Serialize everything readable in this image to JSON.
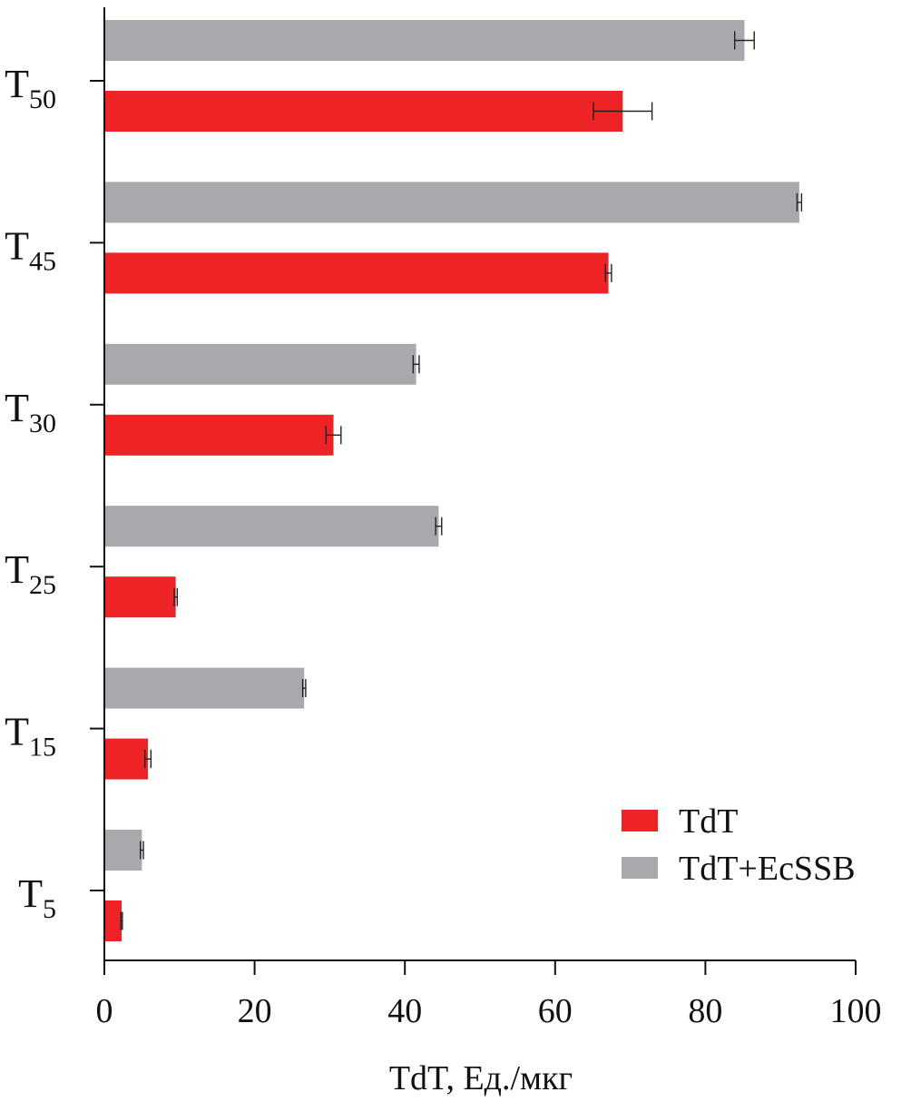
{
  "chart_data": {
    "type": "bar",
    "orientation": "horizontal",
    "categories": [
      {
        "base": "T",
        "sub": "50"
      },
      {
        "base": "T",
        "sub": "45"
      },
      {
        "base": "T",
        "sub": "30"
      },
      {
        "base": "T",
        "sub": "25"
      },
      {
        "base": "T",
        "sub": "15"
      },
      {
        "base": "T",
        "sub": "5"
      }
    ],
    "series": [
      {
        "name": "TdT+EcSSB",
        "color": "#a7a9ac",
        "values": [
          85.2,
          92.5,
          41.5,
          44.5,
          26.6,
          5.0
        ],
        "errors": [
          1.3,
          0.3,
          0.4,
          0.4,
          0.2,
          0.2
        ]
      },
      {
        "name": "TdT",
        "color": "#ee2326",
        "values": [
          69.0,
          67.1,
          30.5,
          9.5,
          5.8,
          2.3
        ],
        "errors": [
          3.9,
          0.4,
          1.0,
          0.2,
          0.4,
          0.1
        ]
      }
    ],
    "xlabel": "TdT, Ед./мкг",
    "xlim": [
      0,
      100
    ],
    "xticks": [
      "0",
      "20",
      "40",
      "60",
      "80",
      "100"
    ],
    "grid": false,
    "legend_position": "bottom-right",
    "legend_order": [
      "TdT",
      "TdT+EcSSB"
    ]
  }
}
